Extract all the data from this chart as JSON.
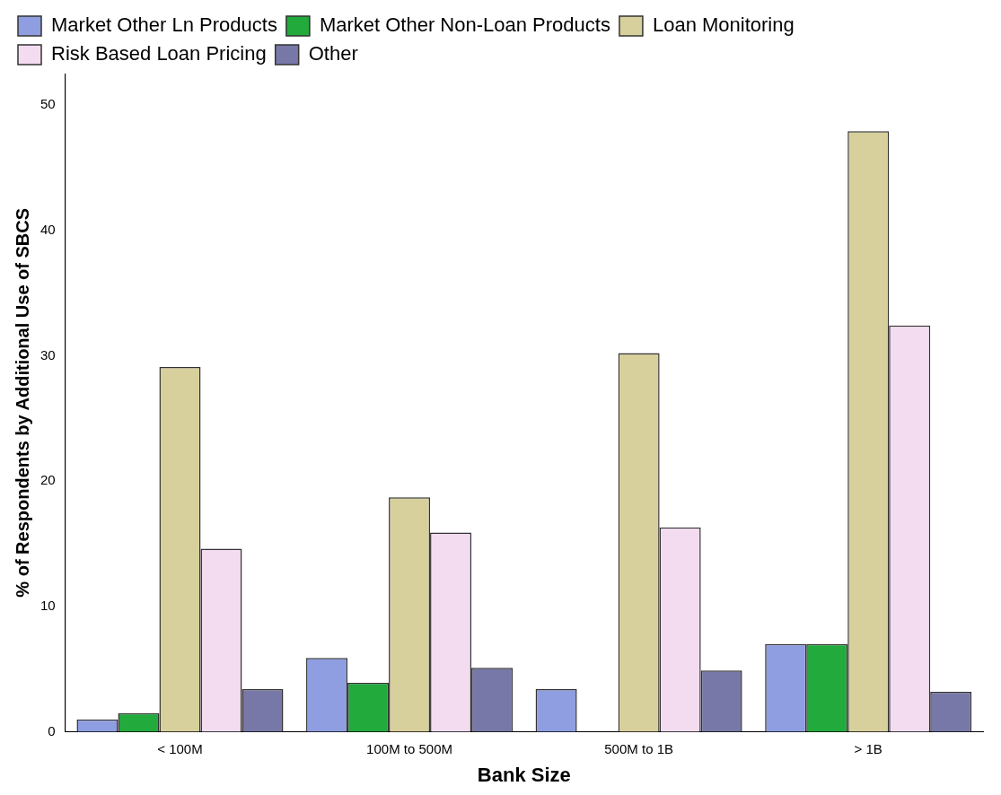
{
  "chart_data": {
    "type": "bar",
    "xlabel": "Bank Size",
    "ylabel": "% of Respondents by Additional Use of SBCS",
    "categories": [
      "< 100M",
      "100M to 500M",
      "500M to 1B",
      "> 1B"
    ],
    "series": [
      {
        "name": "Market Other Ln Products",
        "color": "#8f9ee0",
        "values": [
          1.0,
          5.9,
          3.4,
          7.0
        ]
      },
      {
        "name": "Market Other Non-Loan Products",
        "color": "#22aa3c",
        "values": [
          1.5,
          3.9,
          0,
          7.0
        ]
      },
      {
        "name": "Loan Monitoring",
        "color": "#d8d09c",
        "values": [
          29.1,
          18.7,
          30.2,
          47.9
        ]
      },
      {
        "name": "Risk Based Loan Pricing",
        "color": "#f3dcf0",
        "values": [
          14.6,
          15.9,
          16.3,
          32.4
        ]
      },
      {
        "name": "Other",
        "color": "#7878a8",
        "values": [
          3.4,
          5.1,
          4.9,
          3.2
        ]
      }
    ],
    "ylim": [
      0,
      52.5
    ],
    "yticks": [
      0,
      10,
      20,
      30,
      40,
      50
    ],
    "grid": false,
    "legend": "top left"
  }
}
